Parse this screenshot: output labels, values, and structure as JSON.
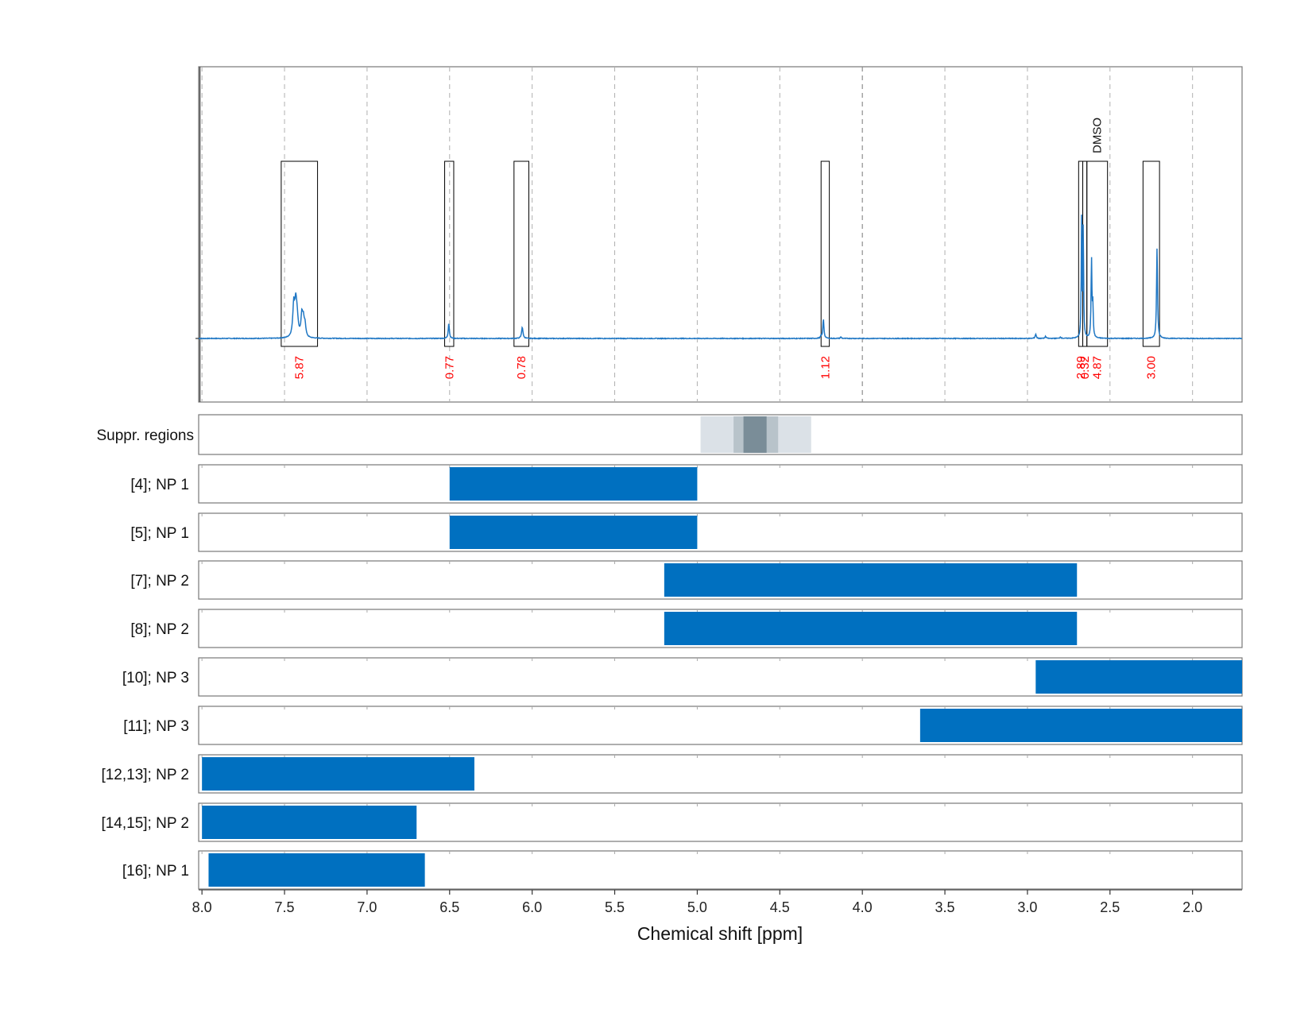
{
  "chart_data": {
    "type": "line",
    "xlabel": "Chemical shift [ppm]",
    "xlim": [
      8.02,
      1.7
    ],
    "x_ticks": [
      "8.0",
      "7.5",
      "7.0",
      "6.5",
      "6.0",
      "5.5",
      "5.0",
      "4.5",
      "4.0",
      "3.5",
      "3.0",
      "2.5",
      "2.0"
    ],
    "grid": true,
    "spectrum": {
      "line_color": "#1f77c4",
      "peaks": [
        {
          "ppm": 7.444,
          "height": 0.18,
          "width": 0.007
        },
        {
          "ppm": 7.432,
          "height": 0.16,
          "width": 0.007
        },
        {
          "ppm": 7.424,
          "height": 0.1,
          "width": 0.008
        },
        {
          "ppm": 7.395,
          "height": 0.12,
          "width": 0.006
        },
        {
          "ppm": 7.386,
          "height": 0.09,
          "width": 0.006
        },
        {
          "ppm": 7.376,
          "height": 0.07,
          "width": 0.006
        },
        {
          "ppm": 6.505,
          "height": 0.087,
          "width": 0.004
        },
        {
          "ppm": 6.06,
          "height": 0.065,
          "width": 0.005
        },
        {
          "ppm": 4.236,
          "height": 0.11,
          "width": 0.004
        },
        {
          "ppm": 4.25,
          "height": 0.012,
          "width": 0.004
        },
        {
          "ppm": 4.13,
          "height": 0.008,
          "width": 0.004
        },
        {
          "ppm": 2.95,
          "height": 0.025,
          "width": 0.004
        },
        {
          "ppm": 2.89,
          "height": 0.012,
          "width": 0.004
        },
        {
          "ppm": 2.8,
          "height": 0.008,
          "width": 0.004
        },
        {
          "ppm": 2.672,
          "height": 0.68,
          "width": 0.0025
        },
        {
          "ppm": 2.662,
          "height": 0.64,
          "width": 0.0025
        },
        {
          "ppm": 2.612,
          "height": 0.45,
          "width": 0.003
        },
        {
          "ppm": 2.604,
          "height": 0.18,
          "width": 0.003
        },
        {
          "ppm": 2.215,
          "height": 0.52,
          "width": 0.0035
        }
      ],
      "integrals": [
        {
          "from": 7.52,
          "to": 7.3,
          "label": "5.87"
        },
        {
          "from": 6.53,
          "to": 6.475,
          "label": "0.77"
        },
        {
          "from": 6.11,
          "to": 6.02,
          "label": "0.78"
        },
        {
          "from": 4.25,
          "to": 4.2,
          "label": "1.12"
        },
        {
          "from": 2.69,
          "to": 2.665,
          "label": "2.89"
        },
        {
          "from": 2.665,
          "to": 2.64,
          "label": "0.32"
        },
        {
          "from": 2.64,
          "to": 2.515,
          "label": "4.87"
        },
        {
          "from": 2.3,
          "to": 2.2,
          "label": "3.00"
        }
      ],
      "integral_label_color": "#ff0000",
      "annotation": {
        "ppm": 2.578,
        "text": "DMSO"
      }
    },
    "suppressed_regions": {
      "label": "Suppr. regions",
      "bands": [
        {
          "from": 4.98,
          "to": 4.31,
          "color": "#dbe1e7"
        },
        {
          "from": 4.78,
          "to": 4.51,
          "color": "#b8c3ca"
        },
        {
          "from": 4.72,
          "to": 4.58,
          "color": "#7a8d98"
        }
      ]
    },
    "series": [
      {
        "name": "[4]; NP 1",
        "from": 6.5,
        "to": 5.0
      },
      {
        "name": "[5]; NP 1",
        "from": 6.5,
        "to": 5.0
      },
      {
        "name": "[7]; NP 2",
        "from": 5.2,
        "to": 2.7
      },
      {
        "name": "[8]; NP 2",
        "from": 5.2,
        "to": 2.7
      },
      {
        "name": "[10]; NP 3",
        "from": 2.95,
        "to": 1.7
      },
      {
        "name": "[11]; NP 3",
        "from": 3.65,
        "to": 1.7
      },
      {
        "name": "[12,13]; NP 2",
        "from": 8.0,
        "to": 6.35
      },
      {
        "name": "[14,15]; NP 2",
        "from": 8.0,
        "to": 6.7
      },
      {
        "name": "[16]; NP 1",
        "from": 7.96,
        "to": 6.65
      }
    ],
    "bar_color": "#0070c0"
  }
}
